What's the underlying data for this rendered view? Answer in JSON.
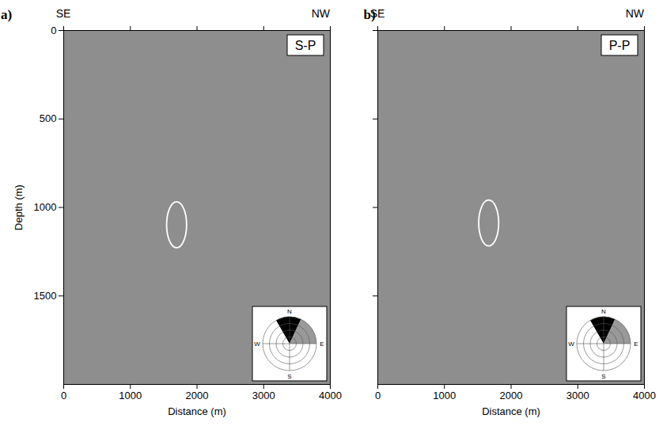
{
  "chart_data": [
    {
      "type": "image",
      "label": "a)",
      "title": "S-P",
      "direction_labels": [
        "SE",
        "NW"
      ],
      "xlabel": "Distance (m)",
      "ylabel": "Depth (m)",
      "xlim": [
        0,
        4000
      ],
      "xticks": [
        0,
        1000,
        2000,
        3000,
        4000
      ],
      "ylim": [
        0,
        2000
      ],
      "yticks": [
        0,
        500,
        1000,
        1500
      ],
      "tick_labels": true,
      "ellipse": {
        "x": 1700,
        "y": 1100,
        "rx": 150,
        "ry": 130
      },
      "compass": {
        "directions": [
          "N",
          "E",
          "S",
          "W"
        ],
        "rings": 4,
        "sectors": [
          {
            "from": -30,
            "to": 25,
            "color": "#000000"
          },
          {
            "from": 25,
            "to": 90,
            "color": "#999999"
          }
        ]
      }
    },
    {
      "type": "image",
      "label": "b)",
      "title": "P-P",
      "direction_labels": [
        "SE",
        "NW"
      ],
      "xlabel": "Distance (m)",
      "xlim": [
        0,
        4000
      ],
      "xticks": [
        0,
        1000,
        2000,
        3000,
        4000
      ],
      "ylim": [
        0,
        2000
      ],
      "yticks": [
        0,
        500,
        1000,
        1500
      ],
      "tick_labels": "x",
      "ellipse": {
        "x": 1670,
        "y": 1090,
        "rx": 150,
        "ry": 130
      },
      "compass": {
        "directions": [
          "N",
          "E",
          "S",
          "W"
        ],
        "rings": 4,
        "sectors": [
          {
            "from": -30,
            "to": 25,
            "color": "#000000"
          },
          {
            "from": 25,
            "to": 90,
            "color": "#999999"
          }
        ]
      }
    }
  ]
}
